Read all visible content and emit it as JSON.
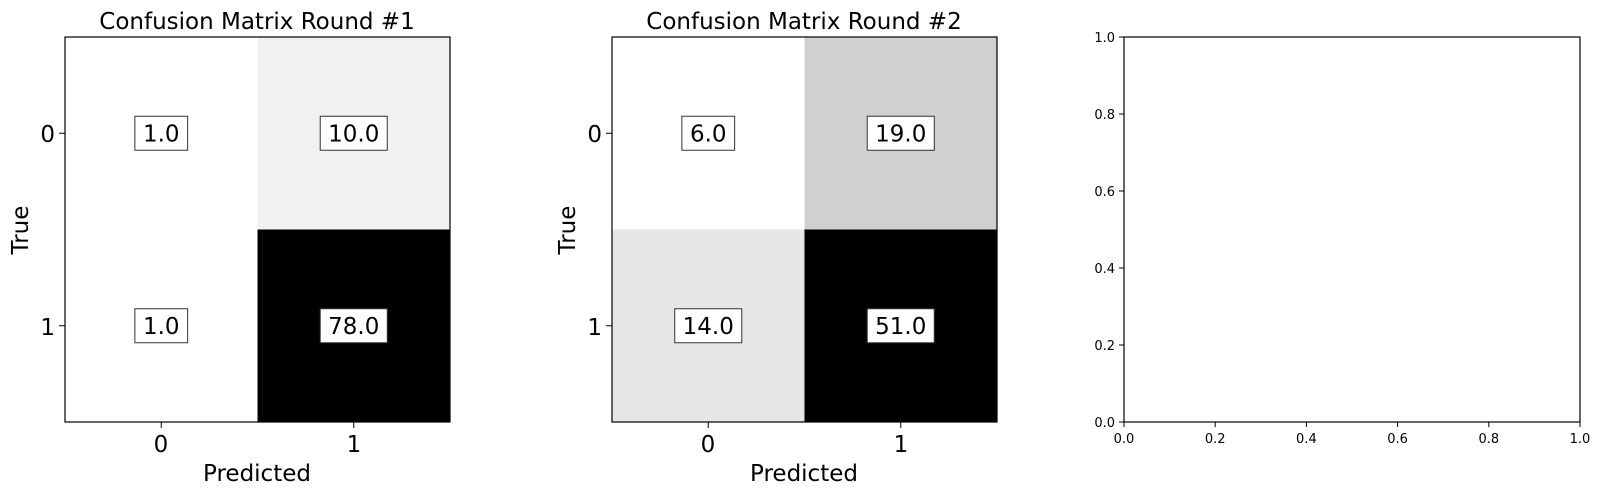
{
  "chart_data": [
    {
      "type": "heatmap",
      "title": "Confusion Matrix Round #1",
      "xlabel": "Predicted",
      "ylabel": "True",
      "x_ticks": [
        "0",
        "1"
      ],
      "y_ticks": [
        "0",
        "1"
      ],
      "colormap": "Greys",
      "matrix": [
        [
          1.0,
          10.0
        ],
        [
          1.0,
          78.0
        ]
      ],
      "cell_labels": [
        [
          "1.0",
          "10.0"
        ],
        [
          "1.0",
          "78.0"
        ]
      ]
    },
    {
      "type": "heatmap",
      "title": "Confusion Matrix Round #2",
      "xlabel": "Predicted",
      "ylabel": "True",
      "x_ticks": [
        "0",
        "1"
      ],
      "y_ticks": [
        "0",
        "1"
      ],
      "colormap": "Greys",
      "matrix": [
        [
          6.0,
          19.0
        ],
        [
          14.0,
          51.0
        ]
      ],
      "cell_labels": [
        [
          "6.0",
          "19.0"
        ],
        [
          "14.0",
          "51.0"
        ]
      ]
    },
    {
      "type": "line",
      "title": "",
      "xlabel": "",
      "ylabel": "",
      "xlim": [
        0.0,
        1.0
      ],
      "ylim": [
        0.0,
        1.0
      ],
      "x_ticks": [
        "0.0",
        "0.2",
        "0.4",
        "0.6",
        "0.8",
        "1.0"
      ],
      "y_ticks": [
        "0.0",
        "0.2",
        "0.4",
        "0.6",
        "0.8",
        "1.0"
      ],
      "series": []
    }
  ]
}
